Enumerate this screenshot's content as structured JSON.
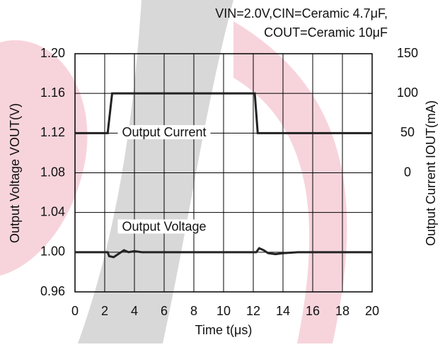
{
  "chart_data": {
    "type": "line",
    "title_lines": [
      "VIN=2.0V,CIN=Ceramic 4.7μF,",
      "COUT=Ceramic 10μF"
    ],
    "x_label": "Time t(μs)",
    "y_label": "Output Voltage VOUT(V)",
    "y2_label": "Output Current IOUT(mA)",
    "xlim": [
      0,
      20
    ],
    "xticks": [
      0,
      2,
      4,
      6,
      8,
      10,
      12,
      14,
      16,
      18,
      20
    ],
    "ylim": [
      0.96,
      1.2
    ],
    "yticks": [
      {
        "value": 0.96,
        "label": "0.96"
      },
      {
        "value": 1,
        "label": "1.00"
      },
      1.04,
      1.08,
      1.12,
      1.16,
      {
        "value": 1.2,
        "label": "1.20"
      }
    ],
    "y2lim": [
      -150,
      150
    ],
    "y2ticks": [
      0,
      50,
      100,
      150
    ],
    "grid": true,
    "series": [
      {
        "name": "Output Current",
        "color": "#222222",
        "axis": "y2",
        "x": [
          0,
          2.2,
          2.5,
          12.1,
          12.3,
          20
        ],
        "values": [
          50,
          50,
          100,
          100,
          50,
          50
        ]
      },
      {
        "name": "Output Voltage",
        "color": "#222222",
        "x": [
          0,
          2.2,
          2.3,
          2.6,
          3.0,
          3.3,
          3.6,
          4.0,
          4.5,
          12.2,
          12.4,
          12.7,
          13.0,
          13.5,
          14.0,
          15.0,
          20
        ],
        "values": [
          1.0,
          1.0,
          0.996,
          0.995,
          0.999,
          1.002,
          1.0,
          1.001,
          1.0,
          1.0,
          1.004,
          1.002,
          0.999,
          0.998,
          0.999,
          1.0,
          1.0
        ]
      }
    ],
    "annotations": [
      {
        "text": "Output Current",
        "x": 6,
        "y": 1.12
      },
      {
        "text": "Output Voltage",
        "x": 6,
        "y": 1.025
      }
    ]
  }
}
